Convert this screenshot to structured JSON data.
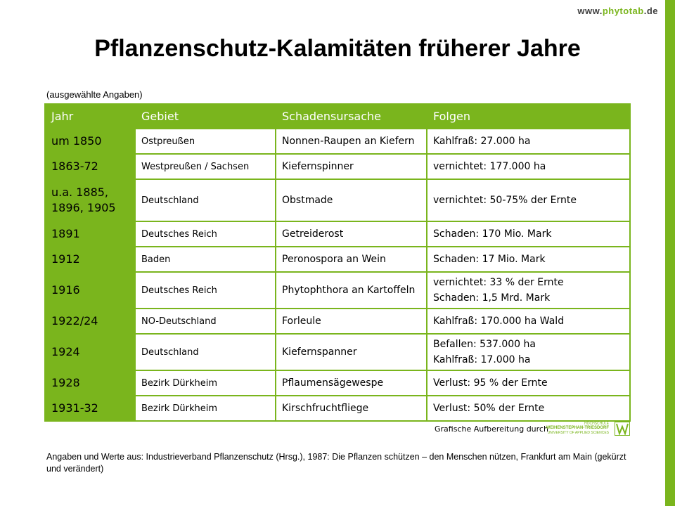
{
  "site": {
    "prefix": "www.",
    "name": "phytotab",
    "suffix": ".de"
  },
  "title": "Pflanzenschutz-Kalamitäten früherer Jahre",
  "subtitle": "(ausgewählte Angaben)",
  "table": {
    "headers": {
      "jahr": "Jahr",
      "gebiet": "Gebiet",
      "ursache": "Schadensursache",
      "folgen": "Folgen"
    },
    "rows": [
      {
        "jahr": [
          "um 1850"
        ],
        "gebiet": "Ostpreußen",
        "ursache": "Nonnen-Raupen an Kiefern",
        "folgen": [
          "Kahlfraß: 27.000 ha"
        ]
      },
      {
        "jahr": [
          "1863-72"
        ],
        "gebiet": "Westpreußen / Sachsen",
        "ursache": "Kiefernspinner",
        "folgen": [
          "vernichtet: 177.000 ha"
        ]
      },
      {
        "jahr": [
          "u.a. 1885,",
          "1896, 1905"
        ],
        "gebiet": "Deutschland",
        "ursache": "Obstmade",
        "folgen": [
          "vernichtet: 50-75% der Ernte"
        ]
      },
      {
        "jahr": [
          "1891"
        ],
        "gebiet": "Deutsches Reich",
        "ursache": "Getreiderost",
        "folgen": [
          "Schaden: 170 Mio. Mark"
        ]
      },
      {
        "jahr": [
          "1912"
        ],
        "gebiet": "Baden",
        "ursache": "Peronospora an Wein",
        "folgen": [
          "Schaden: 17 Mio. Mark"
        ]
      },
      {
        "jahr": [
          "1916"
        ],
        "gebiet": "Deutsches Reich",
        "ursache": "Phytophthora an Kartoffeln",
        "folgen": [
          "vernichtet: 33 % der Ernte",
          "Schaden: 1,5 Mrd. Mark"
        ]
      },
      {
        "jahr": [
          "1922/24"
        ],
        "gebiet": "NO-Deutschland",
        "ursache": "Forleule",
        "folgen": [
          "Kahlfraß: 170.000 ha Wald"
        ]
      },
      {
        "jahr": [
          "1924"
        ],
        "gebiet": "Deutschland",
        "ursache": "Kiefernspanner",
        "folgen": [
          "Befallen: 537.000 ha",
          "Kahlfraß: 17.000 ha"
        ]
      },
      {
        "jahr": [
          "1928"
        ],
        "gebiet": "Bezirk Dürkheim",
        "ursache": "Pflaumensägewespe",
        "folgen": [
          "Verlust: 95 % der Ernte"
        ]
      },
      {
        "jahr": [
          "1931-32"
        ],
        "gebiet": "Bezirk Dürkheim",
        "ursache": "Kirschfruchtfliege",
        "folgen": [
          "Verlust: 50% der Ernte"
        ]
      }
    ]
  },
  "credit": "Grafische Aufbereitung durch",
  "logo": {
    "line1": "HOCHSCHULE",
    "line2": "WEIHENSTEPHAN-TRIESDORF",
    "line3": "UNIVERSITY OF APPLIED SCIENCES"
  },
  "source": "Angaben und Werte aus: Industrieverband Pflanzenschutz (Hrsg.), 1987: Die Pflanzen schützen – den Menschen nützen, Frankfurt am Main (gekürzt und verändert)",
  "colors": {
    "accent": "#7ab51d"
  }
}
